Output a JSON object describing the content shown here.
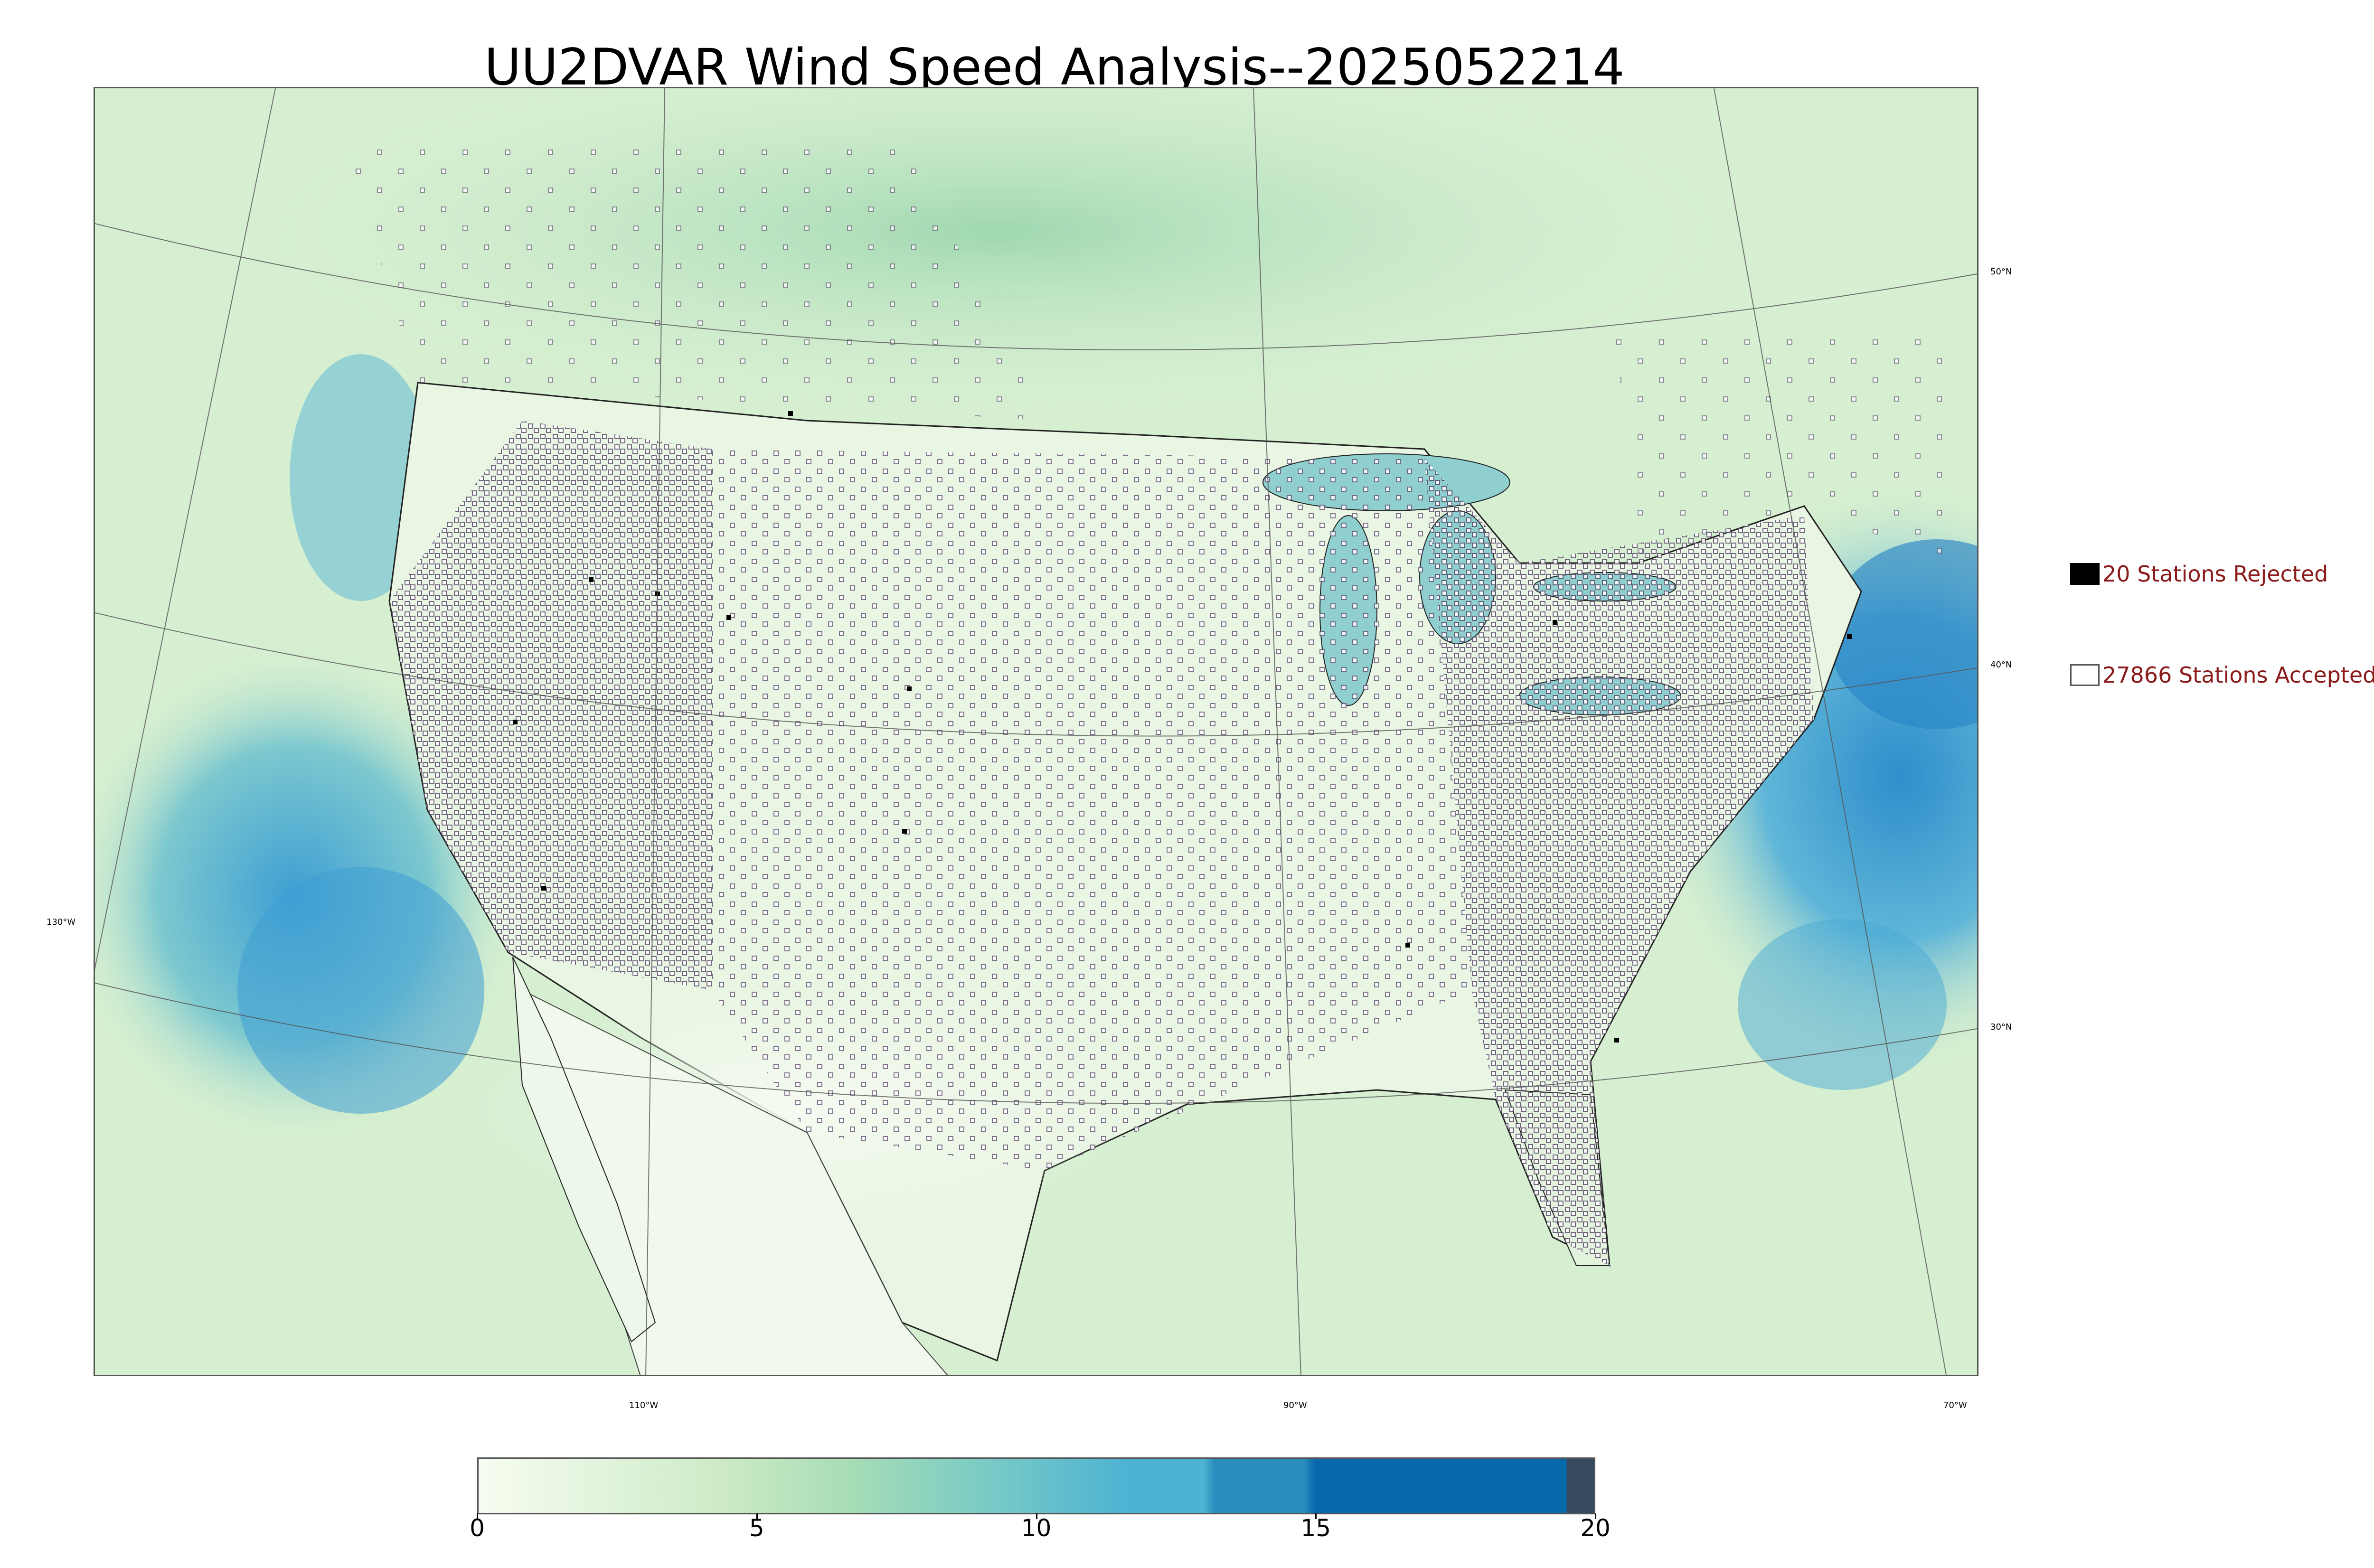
{
  "title": "UU2DVAR Wind Speed Analysis--2025052214",
  "legend": {
    "rejected": {
      "label": "20 Stations Rejected",
      "swatch_color": "#000000"
    },
    "accepted": {
      "label": "27866 Stations Accepted",
      "swatch_color": "#ffffff"
    }
  },
  "graticule": {
    "lat_labels": [
      "50°N",
      "40°N",
      "30°N"
    ],
    "lon_labels": [
      "130°W",
      "110°W",
      "90°W",
      "70°W"
    ]
  },
  "colorbar": {
    "ticks": [
      "0",
      "5",
      "10",
      "15",
      "20"
    ],
    "range": [
      0,
      20
    ],
    "colors": [
      "#f7fcf0",
      "#e0f3db",
      "#ccebc5",
      "#a8ddb5",
      "#7bccc4",
      "#4eb3d3",
      "#2b8cbe",
      "#0868ac",
      "#354a5f"
    ]
  },
  "colors": {
    "land_base": "#e8f5e4",
    "ocean_base": "#d3eed0",
    "high_wind": "#4ba6d6",
    "legend_text": "#8b1a1a"
  }
}
